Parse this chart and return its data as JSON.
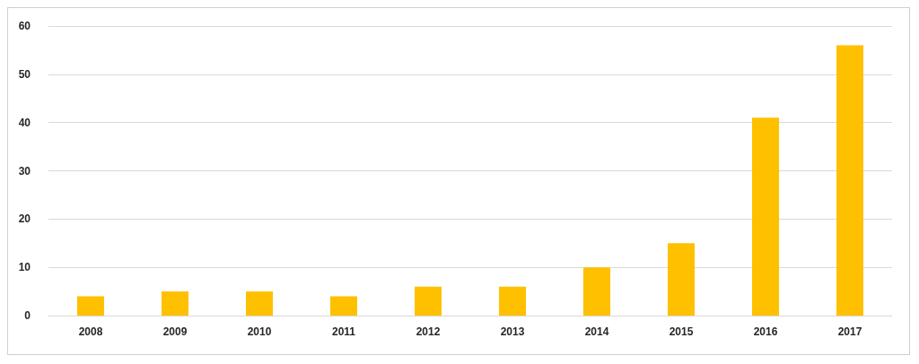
{
  "chart_data": {
    "type": "bar",
    "categories": [
      "2008",
      "2009",
      "2010",
      "2011",
      "2012",
      "2013",
      "2014",
      "2015",
      "2016",
      "2017"
    ],
    "values": [
      4,
      5,
      5,
      4,
      6,
      6,
      10,
      15,
      41,
      56
    ],
    "color": "#ffc000",
    "ylim": [
      0,
      60
    ],
    "yticks": [
      0,
      10,
      20,
      30,
      40,
      50,
      60
    ],
    "grid": "y"
  }
}
